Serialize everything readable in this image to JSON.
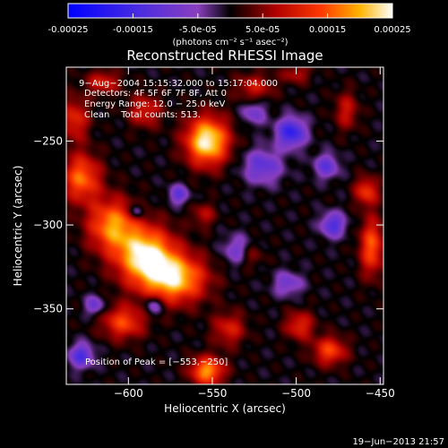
{
  "chart_data": {
    "type": "heatmap",
    "title": "Reconstructed RHESSI Image",
    "xlabel": "Heliocentric X (arcsec)",
    "ylabel": "Heliocentric Y (arcsec)",
    "xlim": [
      -637,
      -448
    ],
    "ylim": [
      -395,
      -206
    ],
    "x_ticks": [
      -600,
      -550,
      -500,
      -450
    ],
    "x_tick_labels": [
      "−600",
      "−550",
      "−500",
      "−450"
    ],
    "y_ticks": [
      -250,
      -300,
      -350
    ],
    "y_tick_labels": [
      "−250",
      "−300",
      "−350"
    ],
    "colorbar": {
      "range": [
        -0.00025,
        0.00025
      ],
      "ticks": [
        -0.00025,
        -0.00015,
        -5e-05,
        5e-05,
        0.00015,
        0.00025
      ],
      "tick_labels": [
        "-0.00025",
        "-0.00015",
        "-5.0e-05",
        "5.0e-05",
        "0.00015",
        "0.00025"
      ],
      "unit_label": "(photons cm⁻² s⁻¹ asec⁻²)"
    },
    "annotations": [
      "9−Aug−2004 15:15:32.000 to 15:17:04.000",
      "Detectors: 4F 5F 6F 7F 8F, Att 0",
      "Energy Range: 12.0 − 25.0 keV",
      "Clean    Total counts: 513."
    ],
    "peak_label": "Position of Peak = [−553,−250]",
    "peak": {
      "x": -553,
      "y": -250
    },
    "sources": [
      {
        "x": -553,
        "y": -250,
        "sx": 9,
        "sy": 10,
        "a": 1.0
      },
      {
        "x": -590,
        "y": -318,
        "sx": 12,
        "sy": 12,
        "a": 0.95
      },
      {
        "x": -572,
        "y": -332,
        "sx": 13,
        "sy": 10,
        "a": 0.85
      },
      {
        "x": -610,
        "y": -300,
        "sx": 10,
        "sy": 11,
        "a": 0.7
      },
      {
        "x": -628,
        "y": -272,
        "sx": 8,
        "sy": 10,
        "a": 0.65
      },
      {
        "x": -632,
        "y": -237,
        "sx": 6,
        "sy": 9,
        "a": 0.45
      },
      {
        "x": -615,
        "y": -215,
        "sx": 7,
        "sy": 5,
        "a": 0.4
      },
      {
        "x": -590,
        "y": -232,
        "sx": 7,
        "sy": 7,
        "a": 0.4
      },
      {
        "x": -603,
        "y": -358,
        "sx": 9,
        "sy": 7,
        "a": 0.55
      },
      {
        "x": -553,
        "y": -387,
        "sx": 7,
        "sy": 6,
        "a": 0.75
      },
      {
        "x": -540,
        "y": -362,
        "sx": 7,
        "sy": 7,
        "a": 0.4
      },
      {
        "x": -498,
        "y": -360,
        "sx": 6,
        "sy": 6,
        "a": 0.45
      },
      {
        "x": -480,
        "y": -375,
        "sx": 7,
        "sy": 6,
        "a": 0.55
      },
      {
        "x": -455,
        "y": -313,
        "sx": 5,
        "sy": 12,
        "a": 0.6
      },
      {
        "x": -458,
        "y": -280,
        "sx": 5,
        "sy": 6,
        "a": 0.5
      },
      {
        "x": -470,
        "y": -232,
        "sx": 5,
        "sy": 8,
        "a": 0.35
      },
      {
        "x": -525,
        "y": -218,
        "sx": 8,
        "sy": 6,
        "a": 0.35
      },
      {
        "x": -500,
        "y": -210,
        "sx": 6,
        "sy": 4,
        "a": 0.3
      },
      {
        "x": -555,
        "y": -294,
        "sx": 5,
        "sy": 5,
        "a": 0.3
      },
      {
        "x": -527,
        "y": -318,
        "sx": 5,
        "sy": 5,
        "a": 0.25
      }
    ],
    "sinks": [
      {
        "x": -503,
        "y": -245,
        "sx": 6,
        "sy": 6,
        "a": 0.7
      },
      {
        "x": -520,
        "y": -265,
        "sx": 8,
        "sy": 7,
        "a": 0.45
      },
      {
        "x": -478,
        "y": -300,
        "sx": 5,
        "sy": 5,
        "a": 0.55
      },
      {
        "x": -482,
        "y": -265,
        "sx": 5,
        "sy": 5,
        "a": 0.45
      },
      {
        "x": -628,
        "y": -378,
        "sx": 5,
        "sy": 5,
        "a": 0.55
      },
      {
        "x": -535,
        "y": -315,
        "sx": 6,
        "sy": 6,
        "a": 0.35
      },
      {
        "x": -505,
        "y": -335,
        "sx": 6,
        "sy": 5,
        "a": 0.35
      },
      {
        "x": -525,
        "y": -233,
        "sx": 5,
        "sy": 5,
        "a": 0.35
      },
      {
        "x": -570,
        "y": -282,
        "sx": 4,
        "sy": 4,
        "a": 0.45
      },
      {
        "x": -585,
        "y": -348,
        "sx": 4,
        "sy": 4,
        "a": 0.4
      },
      {
        "x": -595,
        "y": -292,
        "sx": 3,
        "sy": 3,
        "a": 0.4
      },
      {
        "x": -620,
        "y": -348,
        "sx": 4,
        "sy": 4,
        "a": 0.4
      }
    ]
  },
  "footer_timestamp": "19−Jun−2013 21:57"
}
